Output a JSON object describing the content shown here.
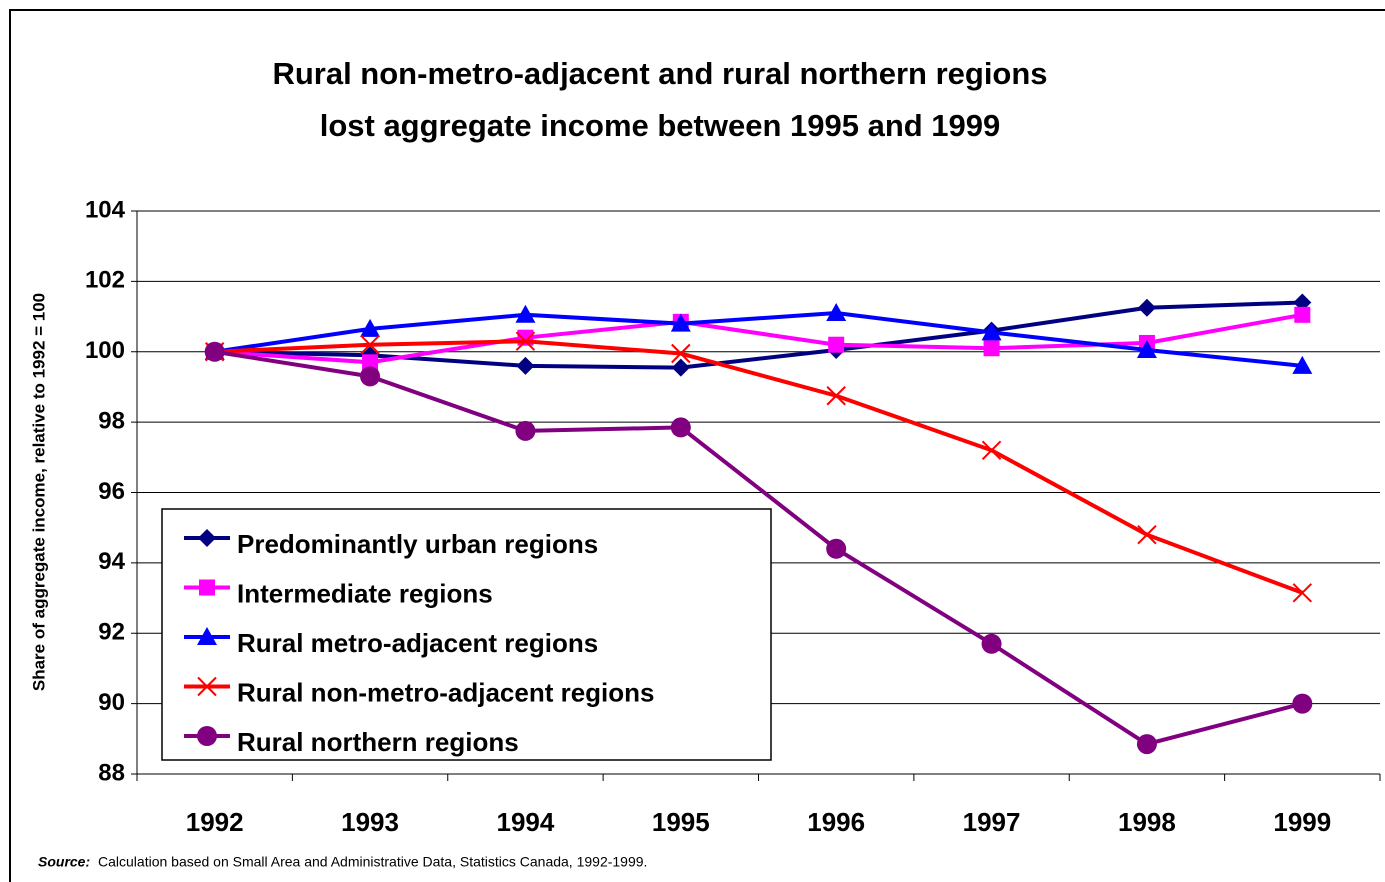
{
  "chart_data": {
    "type": "line",
    "title": [
      "Rural non-metro-adjacent and rural northern regions",
      "lost aggregate income between 1995 and 1999"
    ],
    "y_label": "Share of aggregate income, relative to 1992 = 100",
    "categories": [
      "1992",
      "1993",
      "1994",
      "1995",
      "1996",
      "1997",
      "1998",
      "1999"
    ],
    "series": [
      {
        "name": "Predominantly urban regions",
        "color": "#000080",
        "marker": "diamond",
        "values": [
          100,
          99.9,
          99.6,
          99.55,
          100.05,
          100.6,
          101.25,
          101.4
        ]
      },
      {
        "name": "Intermediate regions",
        "color": "#ff00ff",
        "marker": "square",
        "values": [
          100,
          99.7,
          100.4,
          100.85,
          100.2,
          100.1,
          100.25,
          101.05
        ]
      },
      {
        "name": "Rural metro-adjacent regions",
        "color": "#0000ff",
        "marker": "triangle",
        "values": [
          100,
          100.65,
          101.05,
          100.8,
          101.1,
          100.55,
          100.05,
          99.6
        ]
      },
      {
        "name": "Rural non-metro-adjacent regions",
        "color": "#ff0000",
        "marker": "x",
        "values": [
          100,
          100.2,
          100.3,
          99.95,
          98.75,
          97.2,
          94.8,
          93.15
        ]
      },
      {
        "name": "Rural northern regions",
        "color": "#800080",
        "marker": "circle",
        "values": [
          100,
          99.3,
          97.75,
          97.85,
          94.4,
          91.7,
          88.85,
          90.0
        ]
      }
    ],
    "ylim": [
      88,
      104
    ],
    "yticks": [
      88,
      90,
      92,
      94,
      96,
      98,
      100,
      102,
      104
    ],
    "grid": true,
    "legend": "lower-left",
    "source_label": "Source:",
    "source": "Calculation based on Small Area and Administrative Data, Statistics Canada, 1992-1999."
  }
}
